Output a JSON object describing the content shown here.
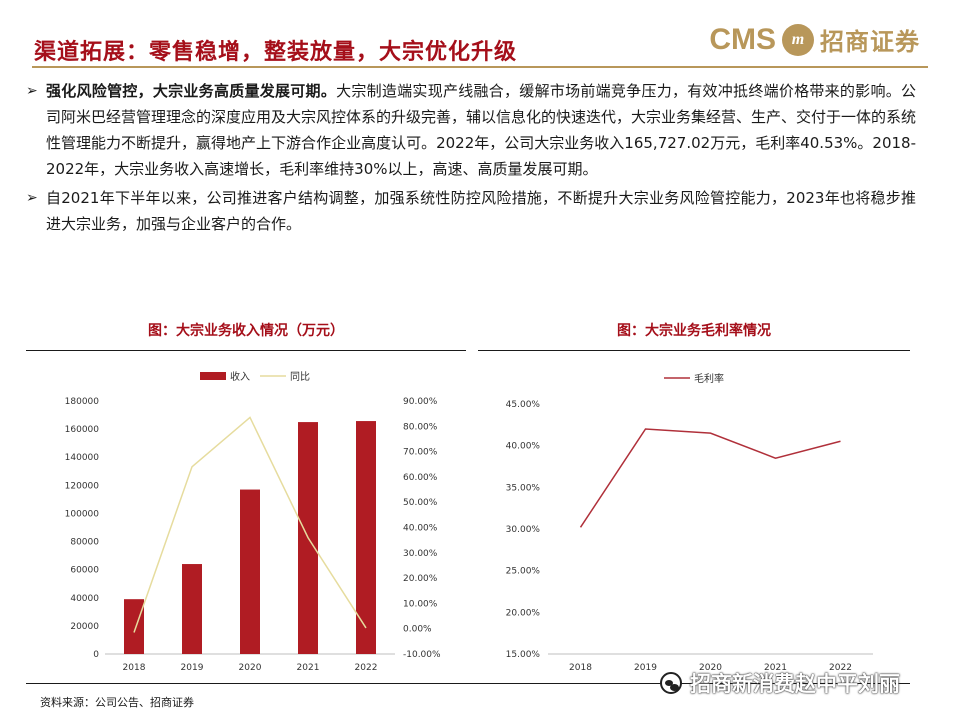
{
  "header": {
    "title": "渠道拓展：零售稳增，整装放量，大宗优化升级",
    "brand_cms": "CMS",
    "brand_logo": "m",
    "brand_cn": "招商证券"
  },
  "bullets": [
    {
      "marker": "➢",
      "bold": "强化风险管控，大宗业务高质量发展可期。",
      "text": "大宗制造端实现产线融合，缓解市场前端竞争压力，有效冲抵终端价格带来的影响。公司阿米巴经营管理理念的深度应用及大宗风控体系的升级完善，辅以信息化的快速迭代，大宗业务集经营、生产、交付于一体的系统性管理能力不断提升，赢得地产上下游合作企业高度认可。2022年，公司大宗业务收入165,727.02万元，毛利率40.53%。2018-2022年，大宗业务收入高速增长，毛利率维持30%以上，高速、高质量发展可期。"
    },
    {
      "marker": "➢",
      "bold": "",
      "text": "自2021年下半年以来，公司推进客户结构调整，加强系统性防控风险措施，不断提升大宗业务风险管控能力，2023年也将稳步推进大宗业务，加强与企业客户的合作。"
    }
  ],
  "panels": {
    "left_title": "图：大宗业务收入情况（万元）",
    "right_title": "图：大宗业务毛利率情况"
  },
  "source": "资料来源：公司公告、招商证券",
  "watermark": "招商新消费赵中平刘丽",
  "colors": {
    "brand_red": "#a50f1a",
    "bar": "#b01c23",
    "yoy_line": "#e6dc9e",
    "margin_line": "#b0303a",
    "gold": "#b8975a"
  },
  "chart_data": [
    {
      "type": "bar",
      "categories": [
        "2018",
        "2019",
        "2020",
        "2021",
        "2022"
      ],
      "series": [
        {
          "name": "收入",
          "type": "bar",
          "axis": "left",
          "values": [
            39000,
            64000,
            117000,
            165000,
            165727.02
          ]
        },
        {
          "name": "同比",
          "type": "line",
          "axis": "right",
          "values": [
            -1.5,
            64.0,
            83.5,
            36.0,
            0.3
          ]
        }
      ],
      "y_left": {
        "min": 0,
        "max": 180000,
        "ticks": [
          "0",
          "20000",
          "40000",
          "60000",
          "80000",
          "100000",
          "120000",
          "140000",
          "160000",
          "180000"
        ]
      },
      "y_right": {
        "min": -10,
        "max": 90,
        "ticks": [
          "-10.00%",
          "0.00%",
          "10.00%",
          "20.00%",
          "30.00%",
          "40.00%",
          "50.00%",
          "60.00%",
          "70.00%",
          "80.00%",
          "90.00%"
        ]
      },
      "legend": "top"
    },
    {
      "type": "line",
      "categories": [
        "2018",
        "2019",
        "2020",
        "2021",
        "2022"
      ],
      "series": [
        {
          "name": "毛利率",
          "values": [
            30.2,
            42.0,
            41.5,
            38.5,
            40.53
          ]
        }
      ],
      "y": {
        "min": 15,
        "max": 45,
        "ticks": [
          "15.00%",
          "20.00%",
          "25.00%",
          "30.00%",
          "35.00%",
          "40.00%",
          "45.00%"
        ]
      },
      "legend": "top-left"
    }
  ]
}
